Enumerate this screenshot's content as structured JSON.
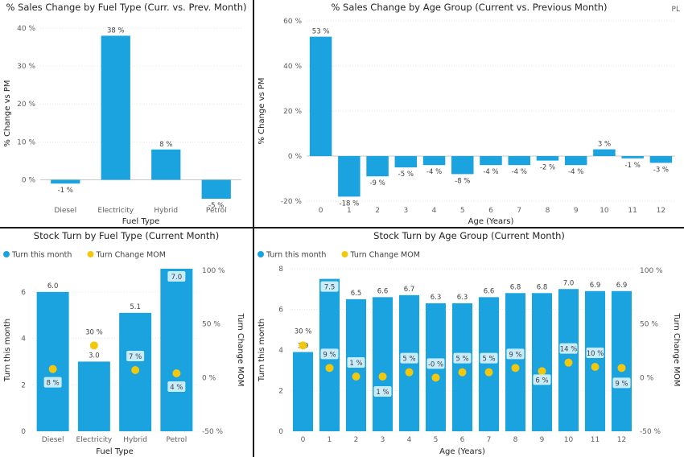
{
  "chart_data": [
    {
      "id": "c1",
      "type": "bar",
      "title": "% Sales Change by Fuel Type (Curr. vs. Prev. Month)",
      "xlabel": "Fuel Type",
      "ylabel": "% Change vs PM",
      "categories": [
        "Diesel",
        "Electricity",
        "Hybrid",
        "Petrol"
      ],
      "values": [
        -1,
        38,
        8,
        -5
      ],
      "value_labels": [
        "-1 %",
        "38 %",
        "8 %",
        "-5 %"
      ],
      "ylim": [
        -5,
        40
      ],
      "yticks": [
        0,
        10,
        20,
        30,
        40
      ],
      "ytick_labels": [
        "0 %",
        "10 %",
        "20 %",
        "30 %",
        "40 %"
      ],
      "color": "#1aa3df"
    },
    {
      "id": "c2",
      "type": "bar",
      "title": "% Sales Change by Age Group (Current vs. Previous Month)",
      "badge": "PL",
      "xlabel": "Age (Years)",
      "ylabel": "% Change vs PM",
      "categories": [
        "0",
        "1",
        "2",
        "3",
        "4",
        "5",
        "6",
        "7",
        "8",
        "9",
        "10",
        "11",
        "12"
      ],
      "values": [
        53,
        -18,
        -9,
        -5,
        -4,
        -8,
        -4,
        -4,
        -2,
        -4,
        3,
        -1,
        -3
      ],
      "value_labels": [
        "53 %",
        "-18 %",
        "-9 %",
        "-5 %",
        "-4 %",
        "-8 %",
        "-4 %",
        "-4 %",
        "-2 %",
        "-4 %",
        "3 %",
        "-1 %",
        "-3 %"
      ],
      "ylim": [
        -20,
        60
      ],
      "yticks": [
        -20,
        0,
        20,
        40,
        60
      ],
      "ytick_labels": [
        "-20 %",
        "0 %",
        "20 %",
        "40 %",
        "60 %"
      ],
      "color": "#1aa3df"
    },
    {
      "id": "c3",
      "type": "bar",
      "title": "Stock Turn by Fuel Type (Current Month)",
      "xlabel": "Fuel Type",
      "ylabel": "Turn this month",
      "y2label": "Turn Change MOM",
      "legend": [
        {
          "name": "Turn this month",
          "color": "#1aa3df"
        },
        {
          "name": "Turn Change MOM",
          "color": "#f2c80f"
        }
      ],
      "categories": [
        "Diesel",
        "Electricity",
        "Hybrid",
        "Petrol"
      ],
      "series": [
        {
          "name": "Turn this month",
          "values": [
            6.0,
            3.0,
            5.1,
            7.0
          ],
          "labels": [
            "6.0",
            "3.0",
            "5.1",
            "7.0"
          ]
        },
        {
          "name": "Turn Change MOM",
          "values": [
            8,
            30,
            7,
            4
          ],
          "labels": [
            "8 %",
            "30 %",
            "7 %",
            "4 %"
          ]
        }
      ],
      "ylim": [
        0,
        7
      ],
      "yticks": [
        0,
        2,
        4,
        6
      ],
      "ytick_labels": [
        "0",
        "2",
        "4",
        "6"
      ],
      "y2lim": [
        -50,
        100
      ],
      "y2ticks": [
        -50,
        0,
        50,
        100
      ],
      "y2tick_labels": [
        "-50 %",
        "0 %",
        "50 %",
        "100 %"
      ]
    },
    {
      "id": "c4",
      "type": "bar",
      "title": "Stock Turn by Age Group (Current Month)",
      "xlabel": "Age (Years)",
      "ylabel": "Turn this month",
      "y2label": "Turn Change MOM",
      "legend": [
        {
          "name": "Turn this month",
          "color": "#1aa3df"
        },
        {
          "name": "Turn Change MOM",
          "color": "#f2c80f"
        }
      ],
      "categories": [
        "0",
        "1",
        "2",
        "3",
        "4",
        "5",
        "6",
        "7",
        "8",
        "9",
        "10",
        "11",
        "12"
      ],
      "series": [
        {
          "name": "Turn this month",
          "values": [
            3.9,
            7.5,
            6.5,
            6.6,
            6.7,
            6.3,
            6.3,
            6.6,
            6.8,
            6.8,
            7.0,
            6.9,
            6.9
          ],
          "labels": [
            "3.9",
            "7.5",
            "6.5",
            "6.6",
            "6.7",
            "6.3",
            "6.3",
            "6.6",
            "6.8",
            "6.8",
            "7.0",
            "6.9",
            "6.9"
          ]
        },
        {
          "name": "Turn Change MOM",
          "values": [
            30,
            9,
            1,
            1,
            5,
            0,
            5,
            5,
            9,
            6,
            14,
            10,
            9
          ],
          "labels": [
            "30 %",
            "9 %",
            "1 %",
            "1 %",
            "5 %",
            "-0 %",
            "5 %",
            "5 %",
            "9 %",
            "6 %",
            "14 %",
            "10 %",
            "9 %"
          ]
        }
      ],
      "ylim": [
        0,
        8
      ],
      "yticks": [
        0,
        2,
        4,
        6,
        8
      ],
      "ytick_labels": [
        "0",
        "2",
        "4",
        "6",
        "8"
      ],
      "y2lim": [
        -50,
        100
      ],
      "y2ticks": [
        -50,
        0,
        50,
        100
      ],
      "y2tick_labels": [
        "-50 %",
        "0 %",
        "50 %",
        "100 %"
      ]
    }
  ]
}
